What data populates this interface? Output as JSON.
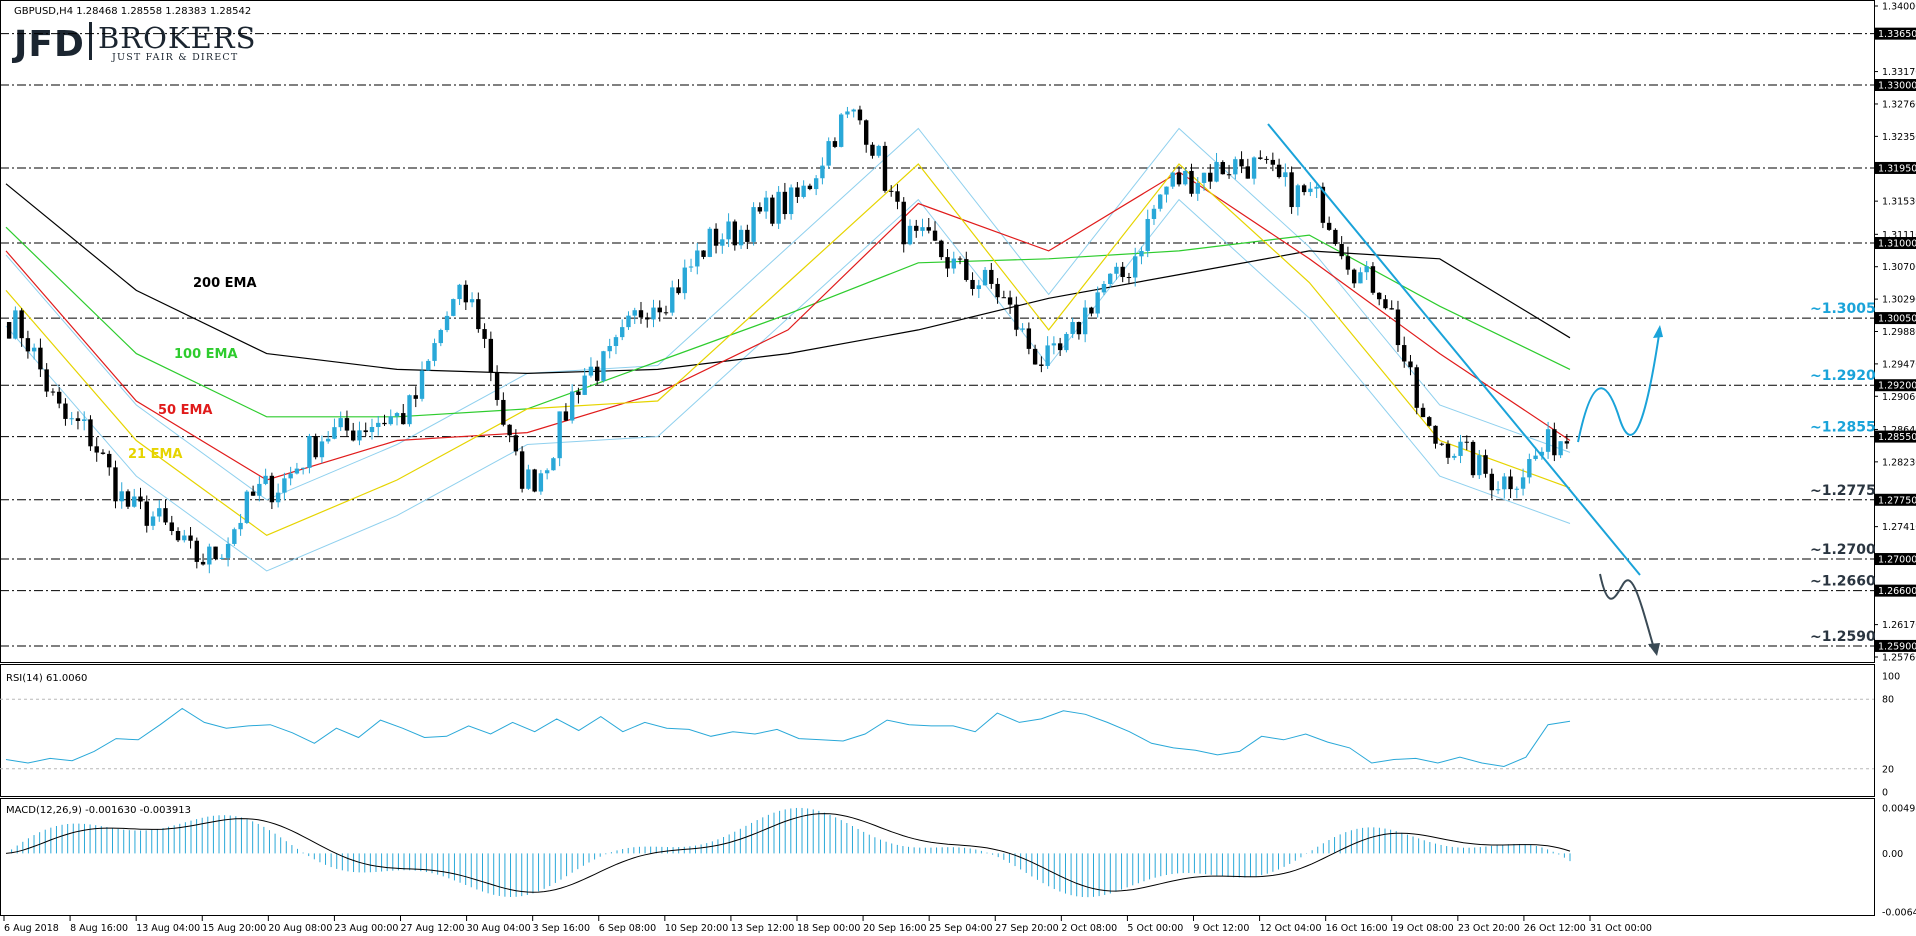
{
  "symbol_header": "GBPUSD,H4  1.28468 1.28558 1.28383 1.28542",
  "logo": {
    "left": "JFD",
    "right": "BROKERS",
    "tagline": "JUST FAIR & DIRECT"
  },
  "colors": {
    "candle": "#29a8d8",
    "ema21": "#e6d400",
    "ema50": "#e01b1b",
    "ema100": "#2ecc2e",
    "ema200": "#000000",
    "bollinger": "#8fd0ee",
    "trendline": "#1aa3d9",
    "projection_up": "#1aa3d9",
    "projection_down": "#3a4a55",
    "rsi": "#29a8d8",
    "macd_hist": "#29a8d8",
    "macd_signal": "#000000",
    "level_text_blue": "#1aa3d9",
    "level_text_dark": "#2a3540"
  },
  "price_axis_ticks": [
    "1.34000",
    "1.33170",
    "1.32760",
    "1.32350",
    "1.31530",
    "1.31110",
    "1.30700",
    "1.30290",
    "1.29880",
    "1.29470",
    "1.29060",
    "1.28640",
    "1.28230",
    "1.27410",
    "1.26170",
    "1.25760"
  ],
  "price_axis_boxes": [
    "1.33650",
    "1.33000",
    "1.31950",
    "1.31000",
    "1.30050",
    "1.29200",
    "1.28550",
    "1.27750",
    "1.27000",
    "1.26600",
    "1.25900"
  ],
  "ema_labels": {
    "ema200": "200 EMA",
    "ema100": "100 EMA",
    "ema50": "50 EMA",
    "ema21": "21 EMA"
  },
  "level_labels": [
    {
      "text": "~1.3005",
      "tone": "blue"
    },
    {
      "text": "~1.2920",
      "tone": "blue"
    },
    {
      "text": "~1.2855",
      "tone": "blue"
    },
    {
      "text": "~1.2775",
      "tone": "dark"
    },
    {
      "text": "~1.2700",
      "tone": "dark"
    },
    {
      "text": "~1.2660",
      "tone": "dark"
    },
    {
      "text": "~1.2590",
      "tone": "dark"
    }
  ],
  "rsi_panel": {
    "title": "RSI(14) 61.0060",
    "ticks": [
      "100",
      "80",
      "20",
      "0"
    ]
  },
  "macd_panel": {
    "title": "MACD(12,26,9) -0.001630 -0.003913",
    "ticks": [
      "0.004989",
      "0.00",
      "-0.006441"
    ]
  },
  "time_labels": [
    "6 Aug 2018",
    "8 Aug 16:00",
    "13 Aug 04:00",
    "15 Aug 20:00",
    "20 Aug 08:00",
    "23 Aug 00:00",
    "27 Aug 12:00",
    "30 Aug 04:00",
    "3 Sep 16:00",
    "6 Sep 08:00",
    "10 Sep 20:00",
    "13 Sep 12:00",
    "18 Sep 00:00",
    "20 Sep 16:00",
    "25 Sep 04:00",
    "27 Sep 20:00",
    "2 Oct 08:00",
    "5 Oct 00:00",
    "9 Oct 12:00",
    "12 Oct 04:00",
    "16 Oct 16:00",
    "19 Oct 08:00",
    "23 Oct 20:00",
    "26 Oct 12:00",
    "31 Oct 00:00"
  ],
  "chart_data": {
    "type": "candlestick",
    "title": "GBPUSD,H4",
    "ylim": [
      1.2576,
      1.34
    ],
    "support_resistance_levels": [
      1.3365,
      1.33,
      1.3195,
      1.31,
      1.3005,
      1.292,
      1.2855,
      1.2775,
      1.27,
      1.266,
      1.259
    ],
    "price_path_keypoints": [
      [
        "6 Aug 2018",
        1.3
      ],
      [
        "8 Aug 16:00",
        1.287
      ],
      [
        "13 Aug 04:00",
        1.276
      ],
      [
        "15 Aug 20:00",
        1.27
      ],
      [
        "20 Aug 08:00",
        1.279
      ],
      [
        "23 Aug 00:00",
        1.286
      ],
      [
        "27 Aug 12:00",
        1.288
      ],
      [
        "30 Aug 04:00",
        1.303
      ],
      [
        "3 Sep 16:00",
        1.28
      ],
      [
        "6 Sep 08:00",
        1.294
      ],
      [
        "10 Sep 20:00",
        1.303
      ],
      [
        "13 Sep 12:00",
        1.311
      ],
      [
        "18 Sep 00:00",
        1.315
      ],
      [
        "20 Sep 16:00",
        1.326
      ],
      [
        "25 Sep 04:00",
        1.31
      ],
      [
        "27 Sep 20:00",
        1.305
      ],
      [
        "2 Oct 08:00",
        1.295
      ],
      [
        "5 Oct 00:00",
        1.305
      ],
      [
        "9 Oct 12:00",
        1.318
      ],
      [
        "12 Oct 04:00",
        1.32
      ],
      [
        "16 Oct 16:00",
        1.316
      ],
      [
        "19 Oct 08:00",
        1.305
      ],
      [
        "23 Oct 20:00",
        1.285
      ],
      [
        "26 Oct 12:00",
        1.28
      ],
      [
        "31 Oct 00:00",
        1.2854
      ]
    ],
    "emas": [
      {
        "name": "200 EMA",
        "path": [
          1.3175,
          1.304,
          1.296,
          1.294,
          1.2935,
          1.294,
          1.296,
          1.299,
          1.303,
          1.306,
          1.309,
          1.308,
          1.298
        ]
      },
      {
        "name": "100 EMA",
        "path": [
          1.312,
          1.296,
          1.288,
          1.288,
          1.289,
          1.295,
          1.301,
          1.3075,
          1.308,
          1.309,
          1.311,
          1.302,
          1.294
        ]
      },
      {
        "name": "50 EMA",
        "path": [
          1.309,
          1.29,
          1.28,
          1.285,
          1.286,
          1.291,
          1.299,
          1.315,
          1.309,
          1.319,
          1.308,
          1.296,
          1.285
        ]
      },
      {
        "name": "21 EMA",
        "path": [
          1.304,
          1.285,
          1.273,
          1.28,
          1.289,
          1.29,
          1.305,
          1.32,
          1.299,
          1.32,
          1.305,
          1.285,
          1.279
        ]
      }
    ],
    "trendline": [
      [
        "13 Oct 00:00",
        1.326
      ],
      [
        "1 Nov 12:00",
        1.269
      ]
    ],
    "rsi": {
      "name": "RSI(14)",
      "last": 61.006,
      "ylim": [
        0,
        100
      ],
      "levels": [
        20,
        80
      ],
      "path": [
        28,
        25,
        29,
        27,
        35,
        46,
        45,
        58,
        72,
        60,
        55,
        57,
        58,
        51,
        42,
        55,
        47,
        62,
        55,
        47,
        48,
        57,
        50,
        60,
        52,
        63,
        53,
        65,
        52,
        60,
        55,
        54,
        48,
        52,
        50,
        54,
        46,
        45,
        44,
        50,
        62,
        58,
        57,
        57,
        52,
        68,
        60,
        63,
        70,
        67,
        60,
        52,
        42,
        38,
        36,
        32,
        35,
        48,
        45,
        50,
        43,
        38,
        25,
        28,
        29,
        25,
        30,
        25,
        22,
        30,
        58,
        61
      ]
    },
    "macd": {
      "name": "MACD(12,26,9)",
      "main": -0.00163,
      "signal": -0.003913,
      "ylim": [
        -0.006441,
        0.004989
      ]
    }
  }
}
